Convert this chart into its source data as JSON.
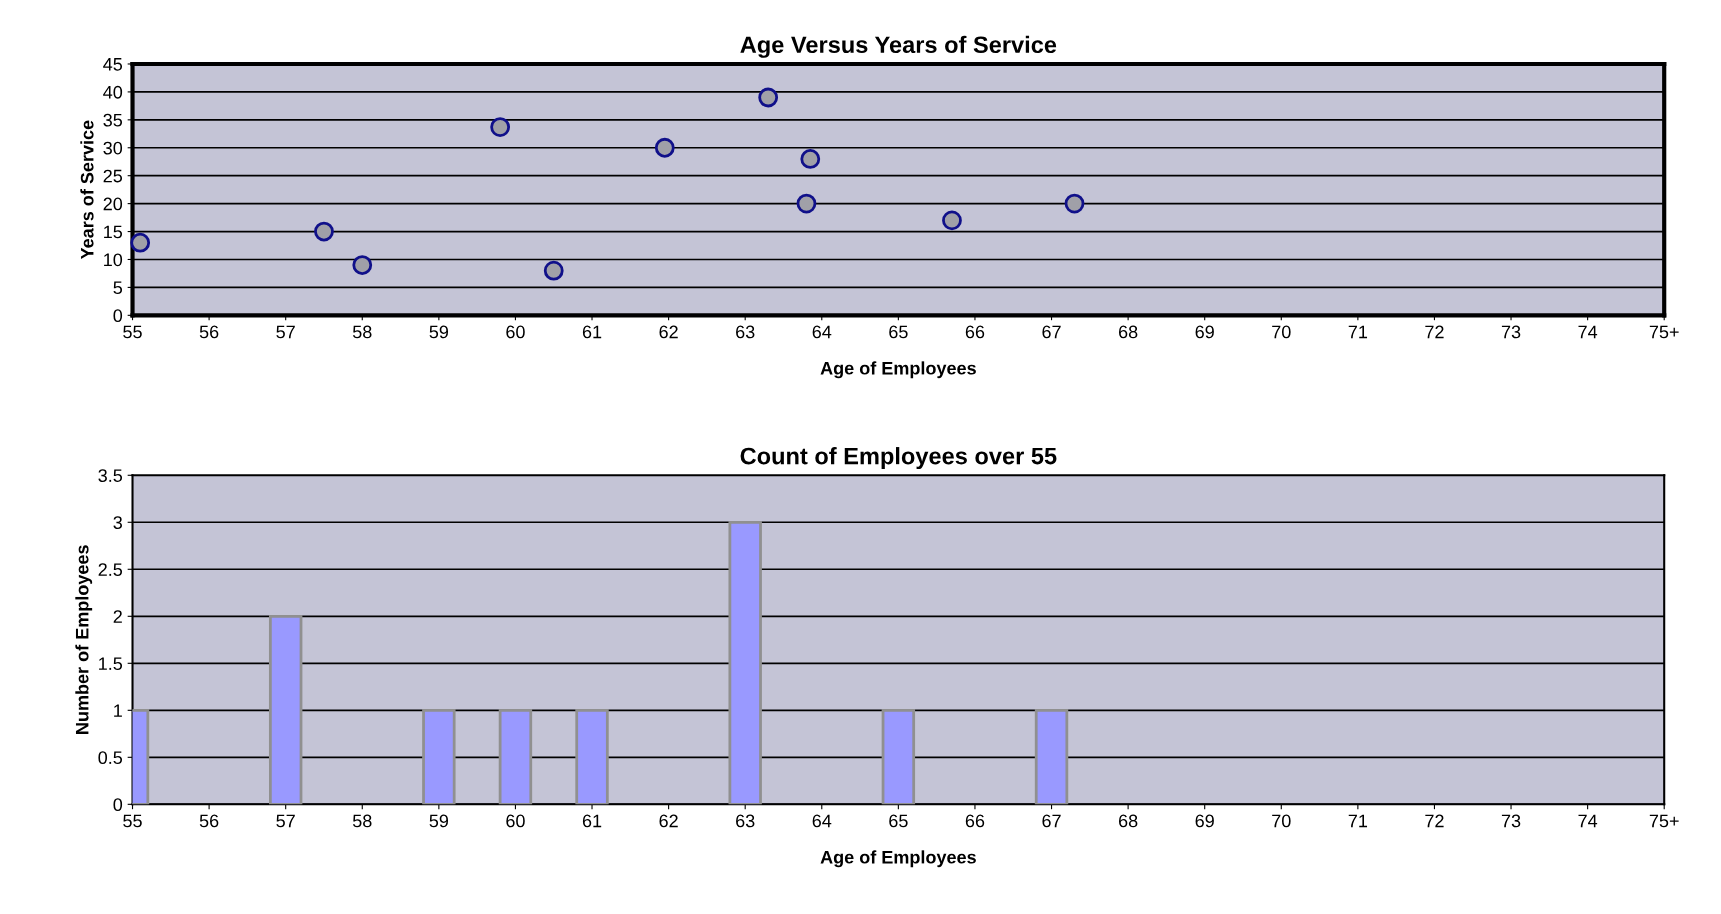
{
  "chart_data": [
    {
      "type": "scatter",
      "title": "Age Versus Years of Service",
      "xlabel": "Age of Employees",
      "ylabel": "Years of Service",
      "xlim": [
        55,
        75
      ],
      "xticks": [
        55,
        56,
        57,
        58,
        59,
        60,
        61,
        62,
        63,
        64,
        65,
        66,
        67,
        68,
        69,
        70,
        71,
        72,
        73,
        74,
        {
          "value": 75,
          "label": "75+"
        }
      ],
      "ylim": [
        0,
        45
      ],
      "yticks": [
        0,
        5,
        10,
        15,
        20,
        25,
        30,
        35,
        40,
        45
      ],
      "grid": "y",
      "marker": "circle",
      "series": [
        {
          "color": "#a0a0a8",
          "x": [
            55.1,
            57.5,
            58.0,
            59.8,
            60.5,
            61.95,
            63.3,
            63.85,
            63.8,
            65.7,
            67.3
          ],
          "values": [
            13,
            15,
            9,
            33.7,
            8,
            30,
            39,
            28,
            20,
            17,
            20
          ]
        }
      ]
    },
    {
      "type": "bar",
      "title": "Count of Employees over 55",
      "xlabel": "Age of Employees",
      "ylabel": "Number of Employees",
      "xlim": [
        55,
        75
      ],
      "xticks": [
        55,
        56,
        57,
        58,
        59,
        60,
        61,
        62,
        63,
        64,
        65,
        66,
        67,
        68,
        69,
        70,
        71,
        72,
        73,
        74,
        {
          "value": 75,
          "label": "75+"
        }
      ],
      "ylim": [
        0,
        3.5
      ],
      "yticks": [
        0,
        0.5,
        1,
        1.5,
        2,
        2.5,
        3,
        3.5
      ],
      "grid": "y",
      "series": [
        {
          "color": "#9999ff",
          "x": [
            55,
            57,
            59,
            60,
            61,
            63,
            65,
            67
          ],
          "values": [
            1,
            2,
            1,
            1,
            1,
            3,
            1,
            1
          ]
        }
      ]
    }
  ]
}
